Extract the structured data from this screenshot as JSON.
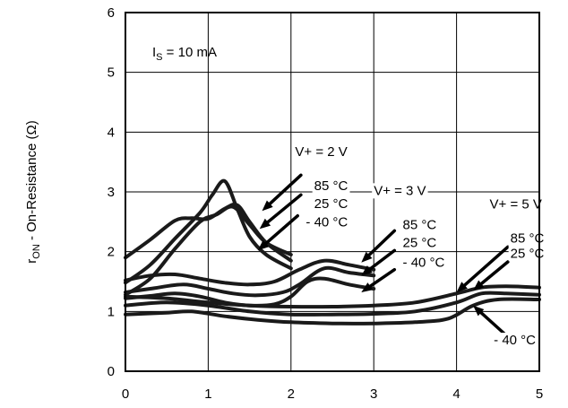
{
  "chart_data": {
    "type": "line",
    "xlabel": "",
    "ylabel": {
      "main": "r",
      "sub": "ON",
      "rest": " - On-Resistance (Ω)"
    },
    "xlim": [
      0,
      5
    ],
    "ylim": [
      0,
      6
    ],
    "xticks": [
      "0",
      "1",
      "2",
      "3",
      "4",
      "5"
    ],
    "yticks": [
      "0",
      "1",
      "2",
      "3",
      "4",
      "5",
      "6"
    ],
    "grid": true,
    "condition": {
      "main": "I",
      "sub": "S",
      "rest": " = 10 mA"
    },
    "series": [
      {
        "group": "V+ = 2 V",
        "temp": "85 °C",
        "x": [
          0,
          0.3,
          0.6,
          0.9,
          1.05,
          1.2,
          1.35,
          1.5,
          1.7,
          2.0
        ],
        "y": [
          1.48,
          1.78,
          2.22,
          2.65,
          2.95,
          3.18,
          2.72,
          2.25,
          1.95,
          1.72
        ]
      },
      {
        "group": "V+ = 2 V",
        "temp": "25 °C",
        "x": [
          0,
          0.3,
          0.6,
          0.9,
          1.1,
          1.3,
          1.5,
          1.7,
          2.0
        ],
        "y": [
          1.28,
          1.55,
          2.05,
          2.5,
          2.62,
          2.75,
          2.45,
          2.15,
          1.95
        ]
      },
      {
        "group": "V+ = 2 V",
        "temp": "- 40 °C",
        "x": [
          0,
          0.3,
          0.6,
          0.8,
          1.0,
          1.2,
          1.35,
          1.5,
          1.7,
          2.0
        ],
        "y": [
          1.9,
          2.2,
          2.52,
          2.56,
          2.55,
          2.72,
          2.78,
          2.5,
          2.15,
          1.85
        ]
      },
      {
        "group": "V+ = 3 V",
        "temp": "85 °C",
        "x": [
          0,
          0.3,
          0.6,
          0.9,
          1.2,
          1.5,
          1.8,
          2.1,
          2.4,
          2.7,
          3.0
        ],
        "y": [
          1.52,
          1.6,
          1.62,
          1.55,
          1.48,
          1.45,
          1.5,
          1.7,
          1.85,
          1.78,
          1.7
        ]
      },
      {
        "group": "V+ = 3 V",
        "temp": "25 °C",
        "x": [
          0,
          0.3,
          0.7,
          1.0,
          1.3,
          1.6,
          1.9,
          2.1,
          2.4,
          2.7,
          3.0
        ],
        "y": [
          1.32,
          1.38,
          1.45,
          1.38,
          1.3,
          1.27,
          1.32,
          1.45,
          1.72,
          1.65,
          1.6
        ]
      },
      {
        "group": "V+ = 3 V",
        "temp": "- 40 °C",
        "x": [
          0,
          0.3,
          0.6,
          0.9,
          1.2,
          1.5,
          1.8,
          2.0,
          2.2,
          2.4,
          2.7,
          3.0
        ],
        "y": [
          1.22,
          1.26,
          1.3,
          1.25,
          1.15,
          1.1,
          1.12,
          1.25,
          1.5,
          1.55,
          1.45,
          1.38
        ]
      },
      {
        "group": "V+ = 5 V",
        "temp": "85 °C",
        "x": [
          0,
          0.5,
          1.0,
          1.5,
          2.0,
          2.5,
          3.0,
          3.5,
          4.0,
          4.3,
          4.6,
          5.0
        ],
        "y": [
          1.25,
          1.22,
          1.15,
          1.1,
          1.08,
          1.08,
          1.1,
          1.15,
          1.3,
          1.4,
          1.42,
          1.4
        ]
      },
      {
        "group": "V+ = 5 V",
        "temp": "25 °C",
        "x": [
          0,
          0.5,
          1.0,
          1.5,
          2.0,
          2.5,
          3.0,
          3.5,
          4.0,
          4.3,
          4.6,
          5.0
        ],
        "y": [
          1.1,
          1.15,
          1.1,
          1.0,
          0.95,
          0.95,
          0.96,
          1.0,
          1.15,
          1.3,
          1.3,
          1.28
        ]
      },
      {
        "group": "V+ = 5 V",
        "temp": "- 40 °C",
        "x": [
          0,
          0.5,
          0.8,
          1.2,
          1.6,
          2.0,
          2.5,
          3.0,
          3.5,
          3.9,
          4.2,
          4.5,
          5.0
        ],
        "y": [
          0.95,
          0.98,
          1.0,
          0.92,
          0.86,
          0.82,
          0.8,
          0.8,
          0.82,
          0.88,
          1.1,
          1.2,
          1.2
        ]
      }
    ],
    "annotations": [
      {
        "text": "V+ = 2 V",
        "x": 2.05,
        "y": 3.6
      },
      {
        "text": "85 °C",
        "x": 2.28,
        "y": 3.03
      },
      {
        "text": "25 °C",
        "x": 2.28,
        "y": 2.73
      },
      {
        "text": "- 40 °C",
        "x": 2.18,
        "y": 2.42
      },
      {
        "text": "V+ = 3 V",
        "x": 3.0,
        "y": 2.95
      },
      {
        "text": "85 °C",
        "x": 3.35,
        "y": 2.38
      },
      {
        "text": "25 °C",
        "x": 3.35,
        "y": 2.08
      },
      {
        "text": "- 40 °C",
        "x": 3.35,
        "y": 1.75
      },
      {
        "text": "V+ = 5 V",
        "x": 4.4,
        "y": 2.72
      },
      {
        "text": "85 °C",
        "x": 4.65,
        "y": 2.15
      },
      {
        "text": "25 °C",
        "x": 4.65,
        "y": 1.9
      },
      {
        "text": "- 40 °C",
        "x": 4.45,
        "y": 0.45
      }
    ],
    "arrows": [
      {
        "from": [
          2.12,
          3.28
        ],
        "to": [
          1.65,
          2.68
        ]
      },
      {
        "from": [
          2.12,
          2.95
        ],
        "to": [
          1.62,
          2.38
        ]
      },
      {
        "from": [
          2.08,
          2.6
        ],
        "to": [
          1.6,
          2.02
        ]
      },
      {
        "from": [
          3.25,
          2.35
        ],
        "to": [
          2.85,
          1.82
        ]
      },
      {
        "from": [
          3.25,
          2.02
        ],
        "to": [
          2.85,
          1.6
        ]
      },
      {
        "from": [
          3.25,
          1.7
        ],
        "to": [
          2.85,
          1.32
        ]
      },
      {
        "from": [
          4.62,
          2.08
        ],
        "to": [
          4.0,
          1.32
        ]
      },
      {
        "from": [
          4.62,
          1.83
        ],
        "to": [
          4.2,
          1.35
        ]
      },
      {
        "from": [
          4.6,
          0.6
        ],
        "to": [
          4.2,
          1.1
        ]
      }
    ]
  }
}
